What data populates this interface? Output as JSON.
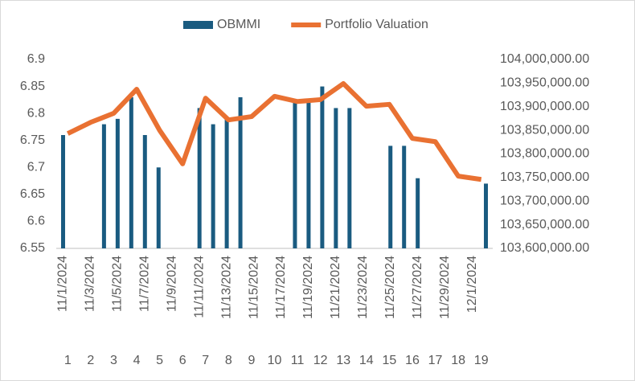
{
  "chart_data": {
    "type": "combo",
    "categories": [
      "11/1/2024",
      null,
      "11/3/2024",
      null,
      "11/5/2024",
      null,
      "11/7/2024",
      null,
      "11/9/2024",
      null,
      "11/11/2024",
      null,
      "11/13/2024",
      null,
      "11/15/2024",
      null,
      "11/17/2024",
      null,
      "11/19/2024",
      null,
      "11/21/2024",
      null,
      "11/23/2024",
      null,
      "11/25/2024",
      null,
      "11/27/2024",
      null,
      "11/29/2024",
      null,
      "12/1/2024",
      null
    ],
    "series": [
      {
        "name": "OBMMI",
        "type": "bar",
        "color": "#1a5b80",
        "values": [
          6.76,
          null,
          null,
          6.78,
          6.79,
          6.83,
          6.76,
          6.7,
          null,
          null,
          6.81,
          6.78,
          6.79,
          6.83,
          null,
          null,
          null,
          6.82,
          6.82,
          6.85,
          6.81,
          6.81,
          null,
          null,
          6.74,
          6.74,
          6.68,
          null,
          null,
          null,
          null,
          6.67
        ]
      },
      {
        "name": "Portfolio Valuation",
        "type": "line",
        "color": "#e97132",
        "axis": "y2",
        "x": [
          1,
          2,
          3,
          4,
          5,
          6,
          7,
          8,
          9,
          10,
          11,
          12,
          13,
          14,
          15,
          16,
          17,
          18,
          19
        ],
        "values": [
          103843000,
          103867000,
          103886000,
          103937000,
          103850000,
          103779000,
          103918000,
          103872000,
          103879000,
          103922000,
          103911000,
          103915000,
          103949000,
          103901000,
          103905000,
          103833000,
          103826000,
          103753000,
          103746000
        ]
      }
    ],
    "ylim": [
      6.55,
      6.9
    ],
    "yticks": [
      6.55,
      6.6,
      6.65,
      6.7,
      6.75,
      6.8,
      6.85,
      6.9
    ],
    "y2lim": [
      103600000,
      104000000
    ],
    "y2ticks": [
      {
        "value": 103600000,
        "label": "103,600,000.00"
      },
      {
        "value": 103650000,
        "label": "103,650,000.00"
      },
      {
        "value": 103700000,
        "label": "103,700,000.00"
      },
      {
        "value": 103750000,
        "label": "103,750,000.00"
      },
      {
        "value": 103800000,
        "label": "103,800,000.00"
      },
      {
        "value": 103850000,
        "label": "103,850,000.00"
      },
      {
        "value": 103900000,
        "label": "103,900,000.00"
      },
      {
        "value": 103950000,
        "label": "103,950,000.00"
      },
      {
        "value": 104000000,
        "label": "104,000,000.00"
      }
    ],
    "legend": "top"
  }
}
